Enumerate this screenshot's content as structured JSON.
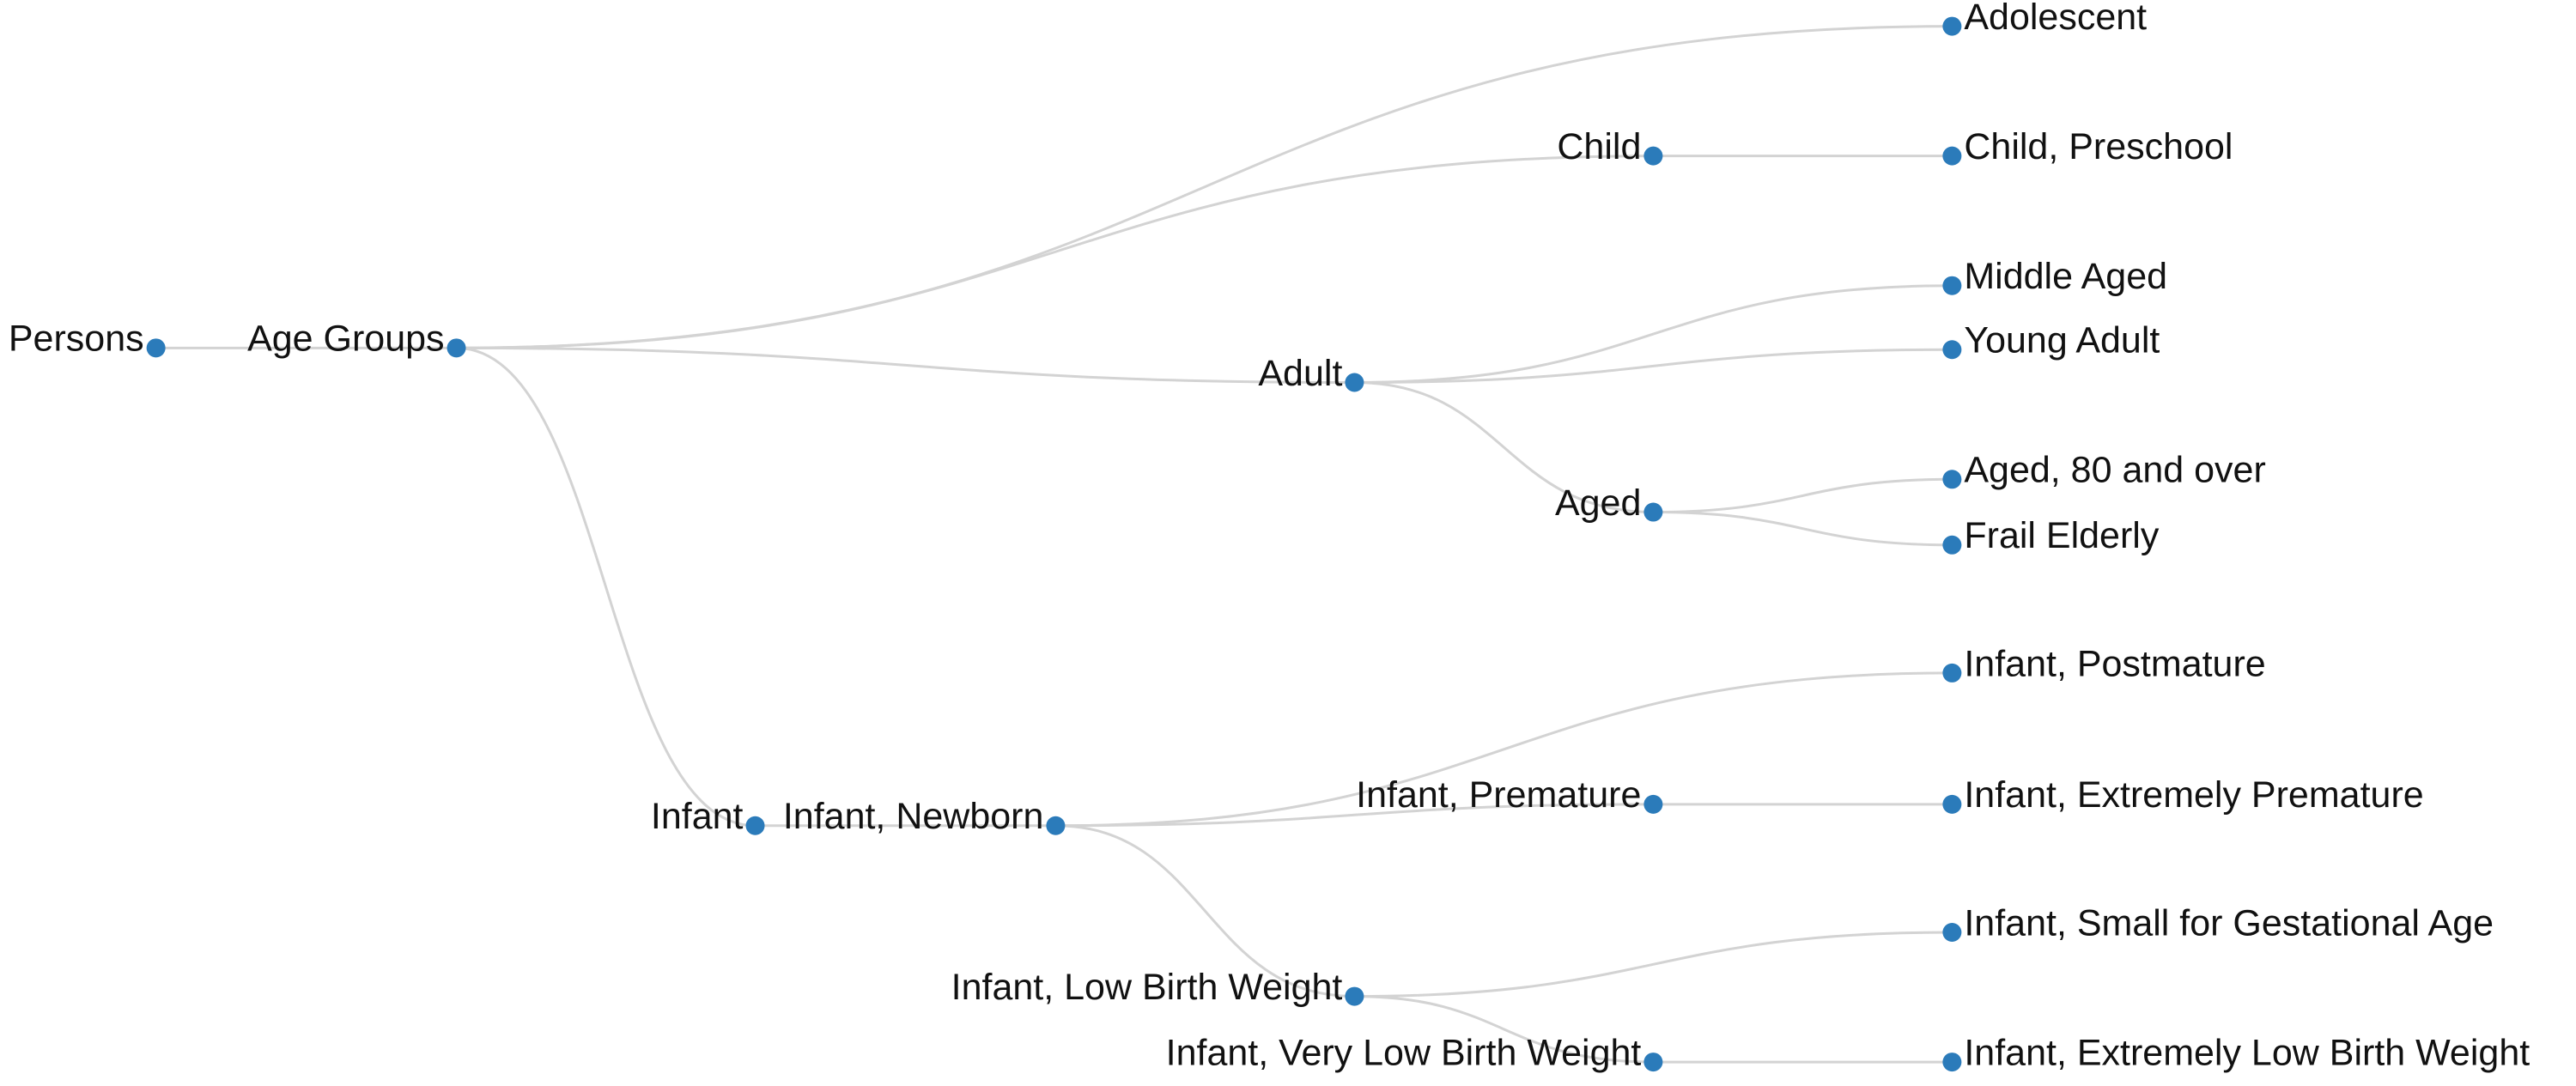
{
  "nodes": [
    {
      "label": "Persons"
    },
    {
      "label": "Age Groups"
    },
    {
      "label": "Adolescent"
    },
    {
      "label": "Child"
    },
    {
      "label": "Child, Preschool"
    },
    {
      "label": "Adult"
    },
    {
      "label": "Middle Aged"
    },
    {
      "label": "Young Adult"
    },
    {
      "label": "Aged"
    },
    {
      "label": "Aged, 80 and over"
    },
    {
      "label": "Frail Elderly"
    },
    {
      "label": "Infant"
    },
    {
      "label": "Infant, Newborn"
    },
    {
      "label": "Infant, Postmature"
    },
    {
      "label": "Infant, Premature"
    },
    {
      "label": "Infant, Extremely Premature"
    },
    {
      "label": "Infant, Low Birth Weight"
    },
    {
      "label": "Infant, Small for Gestational Age"
    },
    {
      "label": "Infant, Very Low Birth Weight"
    },
    {
      "label": "Infant, Extremely Low Birth Weight"
    }
  ]
}
